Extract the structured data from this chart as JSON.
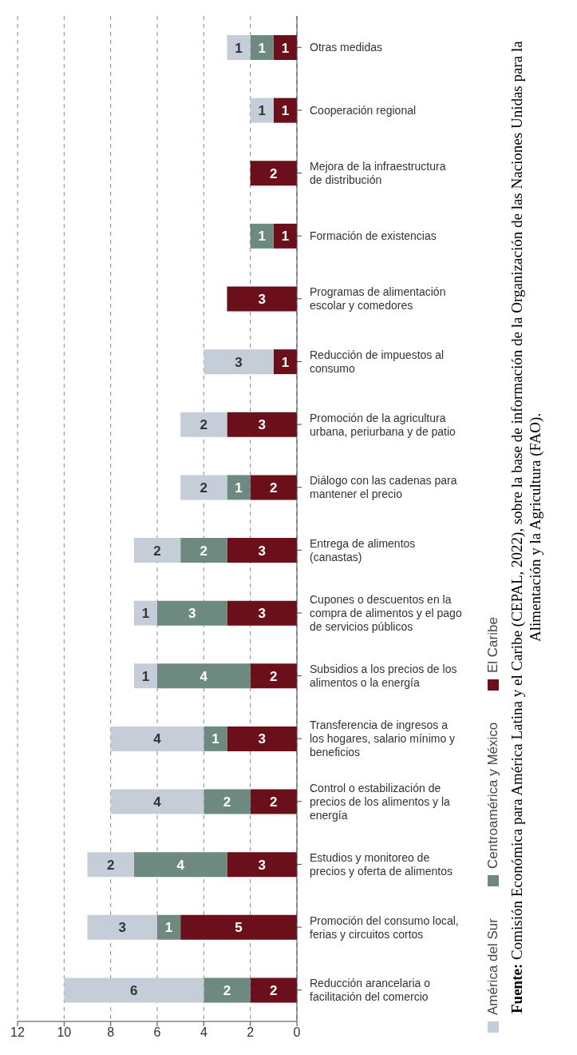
{
  "chart_data": {
    "type": "bar",
    "stacked": true,
    "orientation": "horizontal",
    "categories": [
      "Otras medidas",
      "Cooperación regional",
      "Mejora de la infraestructura de distribución",
      "Formación de existencias",
      "Programas de alimentación escolar y comedores",
      "Reducción de impuestos al consumo",
      "Promoción de la agricultura urbana, periurbana y de patio",
      "Diálogo con las cadenas para mantener el precio",
      "Entrega de alimentos (canastas)",
      "Cupones o descuentos en la compra de alimentos y el pago de servicios públicos",
      "Subsidios a los precios de los alimentos o la energía",
      "Transferencia de ingresos a los hogares, salario mínimo y beneficios",
      "Control o estabilización de precios de los alimentos y la energía",
      "Estudios y monitoreo de precios y oferta de alimentos",
      "Promoción del consumo local, ferias y circuitos cortos",
      "Reducción arancelaria o facilitación del comercio"
    ],
    "series": [
      {
        "name": "El Caribe",
        "color": "#6b0f1a",
        "values": [
          1,
          1,
          2,
          1,
          3,
          1,
          3,
          2,
          3,
          3,
          2,
          3,
          2,
          3,
          5,
          2
        ]
      },
      {
        "name": "Centroamérica y México",
        "color": "#6e8a80",
        "values": [
          1,
          null,
          null,
          1,
          null,
          null,
          null,
          1,
          2,
          3,
          4,
          1,
          2,
          4,
          1,
          2
        ]
      },
      {
        "name": "América del Sur",
        "color": "#c5cdd8",
        "values": [
          1,
          1,
          null,
          null,
          null,
          3,
          2,
          2,
          2,
          1,
          1,
          4,
          4,
          2,
          3,
          6
        ]
      }
    ],
    "xlim": [
      12,
      0
    ],
    "xticks": [
      12,
      10,
      8,
      6,
      4,
      2,
      0
    ],
    "grid": "x",
    "legend": "bottom",
    "data_labels": true,
    "annotations": [
      "Fuente: Comisión Económica para América Latina y el Caribe (CEPAL, 2022), sobre la base de información de la Organización de las Naciones Unidas para la Alimentación y la Agricultura (FAO)."
    ]
  }
}
